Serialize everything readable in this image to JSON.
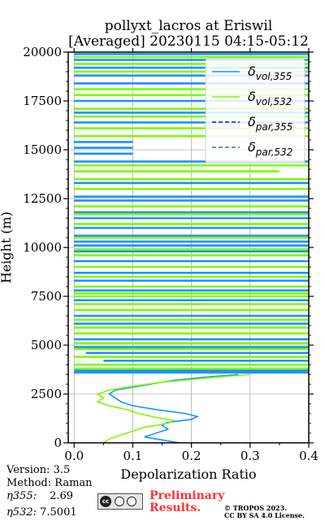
{
  "header": {
    "title_line1": "pollyxt_lacros at Eriswil",
    "title_line2": "[Averaged] 20230115 04:15-05:12"
  },
  "footer": {
    "version": "Version: 3.5",
    "method": "Method: Raman",
    "eta355_label": "η355:",
    "eta355_value": "2.69",
    "eta532_label": "η532:",
    "eta532_value": "7.5001",
    "preliminary_line1": "Preliminary",
    "preliminary_line2": "Results.",
    "copyright_line1": "© TROPOS 2023.",
    "copyright_line2": "CC BY SA 4.0 License."
  },
  "chart_data": {
    "type": "line",
    "xlabel": "Depolarization Ratio",
    "ylabel": "Height (m)",
    "xlim": [
      -0.01,
      0.4
    ],
    "ylim": [
      0,
      20000
    ],
    "xticks": [
      0.0,
      0.1,
      0.2,
      0.3,
      0.4
    ],
    "xtick_labels": [
      "0.0",
      "0.1",
      "0.2",
      "0.3",
      "0.4"
    ],
    "yticks": [
      0,
      2500,
      5000,
      7500,
      10000,
      12500,
      15000,
      17500,
      20000
    ],
    "ytick_labels": [
      "0",
      "2500",
      "5000",
      "7500",
      "10000",
      "12500",
      "15000",
      "17500",
      "20000"
    ],
    "grid": true,
    "legend_position": "top-right",
    "series": [
      {
        "name": "δvol,355",
        "color": "#1e90ff",
        "dash": "solid",
        "profile": [
          {
            "h": 0,
            "x": 0.18
          },
          {
            "h": 150,
            "x": 0.15
          },
          {
            "h": 300,
            "x": 0.12
          },
          {
            "h": 500,
            "x": 0.14
          },
          {
            "h": 700,
            "x": 0.16
          },
          {
            "h": 900,
            "x": 0.15
          },
          {
            "h": 1050,
            "x": 0.16
          },
          {
            "h": 1200,
            "x": 0.2
          },
          {
            "h": 1350,
            "x": 0.21
          },
          {
            "h": 1500,
            "x": 0.19
          },
          {
            "h": 1700,
            "x": 0.14
          },
          {
            "h": 1900,
            "x": 0.1
          },
          {
            "h": 2100,
            "x": 0.08
          },
          {
            "h": 2300,
            "x": 0.07
          },
          {
            "h": 2500,
            "x": 0.06
          },
          {
            "h": 2700,
            "x": 0.07
          },
          {
            "h": 2850,
            "x": 0.1
          },
          {
            "h": 3000,
            "x": 0.13
          },
          {
            "h": 3200,
            "x": 0.17
          },
          {
            "h": 3350,
            "x": 0.22
          },
          {
            "h": 3500,
            "x": 0.28
          }
        ],
        "noise_segments": [
          {
            "h": 3600,
            "x1": 0.0,
            "x2": 0.4
          },
          {
            "h": 3700,
            "x1": 0.0,
            "x2": 0.4
          },
          {
            "h": 4200,
            "x1": 0.05,
            "x2": 0.4
          },
          {
            "h": 4600,
            "x1": 0.02,
            "x2": 0.4
          },
          {
            "h": 4900,
            "x1": 0.0,
            "x2": 0.4
          },
          {
            "h": 5300,
            "x1": 0.0,
            "x2": 0.4
          },
          {
            "h": 6100,
            "x1": 0.0,
            "x2": 0.4
          },
          {
            "h": 6500,
            "x1": 0.0,
            "x2": 0.4
          },
          {
            "h": 7300,
            "x1": 0.0,
            "x2": 0.4
          },
          {
            "h": 7800,
            "x1": 0.0,
            "x2": 0.4
          },
          {
            "h": 8300,
            "x1": 0.0,
            "x2": 0.4
          },
          {
            "h": 8700,
            "x1": 0.0,
            "x2": 0.4
          },
          {
            "h": 9300,
            "x1": 0.0,
            "x2": 0.4
          },
          {
            "h": 9800,
            "x1": 0.0,
            "x2": 0.4
          },
          {
            "h": 10100,
            "x1": 0.0,
            "x2": 0.4
          },
          {
            "h": 10300,
            "x1": 0.0,
            "x2": 0.4
          },
          {
            "h": 10600,
            "x1": 0.0,
            "x2": 0.4
          },
          {
            "h": 11000,
            "x1": 0.0,
            "x2": 0.4
          },
          {
            "h": 11500,
            "x1": 0.0,
            "x2": 0.4
          },
          {
            "h": 11800,
            "x1": 0.0,
            "x2": 0.4
          },
          {
            "h": 12400,
            "x1": 0.0,
            "x2": 0.4
          },
          {
            "h": 12600,
            "x1": 0.0,
            "x2": 0.4
          },
          {
            "h": 13300,
            "x1": 0.0,
            "x2": 0.4
          },
          {
            "h": 14400,
            "x1": 0.0,
            "x2": 0.4
          },
          {
            "h": 14800,
            "x1": 0.0,
            "x2": 0.1
          },
          {
            "h": 15100,
            "x1": 0.0,
            "x2": 0.1
          },
          {
            "h": 15400,
            "x1": 0.0,
            "x2": 0.1
          },
          {
            "h": 16400,
            "x1": 0.0,
            "x2": 0.4
          },
          {
            "h": 16900,
            "x1": 0.0,
            "x2": 0.4
          },
          {
            "h": 17500,
            "x1": 0.0,
            "x2": 0.4
          },
          {
            "h": 18400,
            "x1": 0.0,
            "x2": 0.4
          },
          {
            "h": 18800,
            "x1": 0.0,
            "x2": 0.4
          },
          {
            "h": 19200,
            "x1": 0.0,
            "x2": 0.4
          },
          {
            "h": 19600,
            "x1": 0.0,
            "x2": 0.4
          },
          {
            "h": 19900,
            "x1": 0.0,
            "x2": 0.4
          }
        ]
      },
      {
        "name": "δvol,532",
        "color": "#7cfc00",
        "dash": "solid",
        "profile": [
          {
            "h": 0,
            "x": 0.05
          },
          {
            "h": 200,
            "x": 0.06
          },
          {
            "h": 400,
            "x": 0.08
          },
          {
            "h": 600,
            "x": 0.1
          },
          {
            "h": 800,
            "x": 0.12
          },
          {
            "h": 1000,
            "x": 0.16
          },
          {
            "h": 1150,
            "x": 0.17
          },
          {
            "h": 1300,
            "x": 0.14
          },
          {
            "h": 1500,
            "x": 0.11
          },
          {
            "h": 1700,
            "x": 0.09
          },
          {
            "h": 1900,
            "x": 0.06
          },
          {
            "h": 2100,
            "x": 0.04
          },
          {
            "h": 2300,
            "x": 0.05
          },
          {
            "h": 2500,
            "x": 0.04
          },
          {
            "h": 2700,
            "x": 0.06
          },
          {
            "h": 2900,
            "x": 0.1
          },
          {
            "h": 3100,
            "x": 0.15
          },
          {
            "h": 3300,
            "x": 0.22
          },
          {
            "h": 3500,
            "x": 0.3
          }
        ],
        "noise_segments": [
          {
            "h": 3800,
            "x1": 0.0,
            "x2": 0.4
          },
          {
            "h": 4000,
            "x1": 0.0,
            "x2": 0.4
          },
          {
            "h": 4400,
            "x1": 0.0,
            "x2": 0.4
          },
          {
            "h": 4800,
            "x1": 0.0,
            "x2": 0.4
          },
          {
            "h": 5100,
            "x1": 0.0,
            "x2": 0.4
          },
          {
            "h": 5600,
            "x1": 0.0,
            "x2": 0.4
          },
          {
            "h": 5900,
            "x1": 0.0,
            "x2": 0.4
          },
          {
            "h": 6300,
            "x1": 0.0,
            "x2": 0.4
          },
          {
            "h": 6800,
            "x1": 0.0,
            "x2": 0.4
          },
          {
            "h": 7100,
            "x1": 0.0,
            "x2": 0.4
          },
          {
            "h": 7500,
            "x1": 0.0,
            "x2": 0.4
          },
          {
            "h": 7650,
            "x1": 0.0,
            "x2": 0.4
          },
          {
            "h": 8000,
            "x1": 0.0,
            "x2": 0.4
          },
          {
            "h": 8500,
            "x1": 0.0,
            "x2": 0.4
          },
          {
            "h": 9000,
            "x1": 0.0,
            "x2": 0.4
          },
          {
            "h": 9600,
            "x1": 0.0,
            "x2": 0.4
          },
          {
            "h": 9900,
            "x1": 0.0,
            "x2": 0.4
          },
          {
            "h": 10500,
            "x1": 0.0,
            "x2": 0.4
          },
          {
            "h": 11200,
            "x1": 0.0,
            "x2": 0.4
          },
          {
            "h": 11700,
            "x1": 0.0,
            "x2": 0.4
          },
          {
            "h": 12100,
            "x1": 0.0,
            "x2": 0.4
          },
          {
            "h": 13000,
            "x1": 0.0,
            "x2": 0.4
          },
          {
            "h": 13500,
            "x1": 0.0,
            "x2": 0.4
          },
          {
            "h": 13900,
            "x1": 0.0,
            "x2": 0.35
          },
          {
            "h": 14200,
            "x1": 0.0,
            "x2": 0.4
          },
          {
            "h": 15700,
            "x1": 0.0,
            "x2": 0.4
          },
          {
            "h": 16100,
            "x1": 0.0,
            "x2": 0.4
          },
          {
            "h": 16700,
            "x1": 0.0,
            "x2": 0.4
          },
          {
            "h": 17100,
            "x1": 0.0,
            "x2": 0.4
          },
          {
            "h": 17800,
            "x1": 0.0,
            "x2": 0.4
          },
          {
            "h": 18100,
            "x1": 0.0,
            "x2": 0.4
          },
          {
            "h": 19000,
            "x1": 0.0,
            "x2": 0.4
          },
          {
            "h": 19400,
            "x1": 0.0,
            "x2": 0.4
          },
          {
            "h": 19750,
            "x1": 0.0,
            "x2": 0.4
          }
        ]
      },
      {
        "name": "δpar,355",
        "color": "#1a1aa6",
        "dash": "dashed",
        "profile": [],
        "noise_segments": []
      },
      {
        "name": "δpar,532",
        "color": "#2e8b57",
        "dash": "dashed",
        "profile": [],
        "noise_segments": []
      }
    ]
  }
}
